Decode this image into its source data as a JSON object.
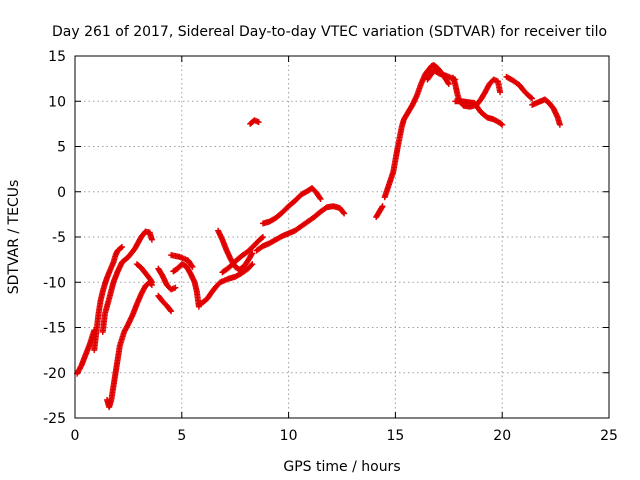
{
  "chart_data": {
    "type": "scatter",
    "title": "Day 261 of 2017, Sidereal Day-to-day VTEC variation (SDTVAR) for receiver tilo",
    "xlabel": "GPS time / hours",
    "ylabel": "SDTVAR / TECUs",
    "xlim": [
      0,
      25
    ],
    "ylim": [
      -25,
      15
    ],
    "xticks": [
      0,
      5,
      10,
      15,
      20,
      25
    ],
    "yticks": [
      -25,
      -20,
      -15,
      -10,
      -5,
      0,
      5,
      10,
      15
    ],
    "grid": true,
    "marker": "+",
    "color": "#e00000",
    "segments": [
      [
        [
          0.1,
          -20.1
        ],
        [
          0.3,
          -19.2
        ],
        [
          0.5,
          -18.0
        ],
        [
          0.7,
          -16.8
        ],
        [
          0.9,
          -15.3
        ]
      ],
      [
        [
          0.9,
          -17.5
        ],
        [
          1.0,
          -15.5
        ],
        [
          1.1,
          -13.5
        ],
        [
          1.2,
          -12.0
        ],
        [
          1.3,
          -11.0
        ],
        [
          1.4,
          -10.2
        ],
        [
          1.5,
          -9.5
        ],
        [
          1.6,
          -8.9
        ],
        [
          1.8,
          -7.8
        ],
        [
          1.9,
          -7.0
        ],
        [
          2.0,
          -6.5
        ],
        [
          2.2,
          -6.1
        ]
      ],
      [
        [
          1.3,
          -15.5
        ],
        [
          1.4,
          -13.5
        ],
        [
          1.6,
          -11.8
        ],
        [
          1.8,
          -10.0
        ],
        [
          2.0,
          -8.8
        ],
        [
          2.2,
          -7.8
        ],
        [
          2.5,
          -7.2
        ],
        [
          2.8,
          -6.3
        ],
        [
          3.1,
          -5.0
        ],
        [
          3.3,
          -4.4
        ],
        [
          3.5,
          -4.5
        ],
        [
          3.6,
          -5.3
        ]
      ],
      [
        [
          1.5,
          -23.0
        ],
        [
          1.6,
          -23.8
        ],
        [
          1.7,
          -23.0
        ],
        [
          1.8,
          -21.5
        ],
        [
          1.9,
          -20.0
        ],
        [
          2.0,
          -18.5
        ],
        [
          2.1,
          -17.0
        ],
        [
          2.3,
          -15.5
        ],
        [
          2.5,
          -14.6
        ],
        [
          2.7,
          -13.6
        ],
        [
          2.9,
          -12.4
        ],
        [
          3.1,
          -11.3
        ],
        [
          3.3,
          -10.4
        ],
        [
          3.5,
          -10.0
        ],
        [
          3.6,
          -10.3
        ]
      ],
      [
        [
          2.9,
          -8.0
        ],
        [
          3.1,
          -8.4
        ],
        [
          3.3,
          -9.0
        ],
        [
          3.5,
          -9.6
        ],
        [
          3.6,
          -10.0
        ]
      ],
      [
        [
          3.9,
          -8.5
        ],
        [
          4.1,
          -9.3
        ],
        [
          4.3,
          -10.3
        ],
        [
          4.5,
          -10.8
        ],
        [
          4.7,
          -10.6
        ]
      ],
      [
        [
          3.9,
          -11.5
        ],
        [
          4.1,
          -12.1
        ],
        [
          4.3,
          -12.6
        ],
        [
          4.5,
          -13.2
        ]
      ],
      [
        [
          4.6,
          -8.8
        ],
        [
          4.8,
          -8.5
        ],
        [
          5.0,
          -8.0
        ],
        [
          5.2,
          -8.2
        ],
        [
          5.4,
          -9.0
        ],
        [
          5.6,
          -10.0
        ],
        [
          5.7,
          -11.0
        ],
        [
          5.8,
          -12.7
        ]
      ],
      [
        [
          4.5,
          -7.0
        ],
        [
          4.9,
          -7.2
        ],
        [
          5.3,
          -7.6
        ],
        [
          5.5,
          -8.3
        ]
      ],
      [
        [
          5.8,
          -12.5
        ],
        [
          6.0,
          -12.2
        ],
        [
          6.2,
          -11.8
        ],
        [
          6.4,
          -11.1
        ],
        [
          6.6,
          -10.5
        ],
        [
          6.8,
          -10.0
        ],
        [
          7.0,
          -9.8
        ],
        [
          7.2,
          -9.6
        ],
        [
          7.5,
          -9.4
        ],
        [
          7.8,
          -9.0
        ],
        [
          8.1,
          -8.5
        ],
        [
          8.3,
          -8.0
        ]
      ],
      [
        [
          6.7,
          -4.3
        ],
        [
          6.9,
          -5.3
        ],
        [
          7.1,
          -6.5
        ],
        [
          7.3,
          -7.5
        ],
        [
          7.5,
          -8.3
        ],
        [
          7.7,
          -8.6
        ],
        [
          7.9,
          -8.3
        ],
        [
          8.1,
          -7.6
        ],
        [
          8.3,
          -6.8
        ]
      ],
      [
        [
          6.9,
          -8.9
        ],
        [
          7.2,
          -8.4
        ],
        [
          7.5,
          -7.7
        ],
        [
          7.8,
          -7.1
        ],
        [
          8.1,
          -6.6
        ],
        [
          8.4,
          -5.9
        ],
        [
          8.6,
          -5.4
        ],
        [
          8.8,
          -5.0
        ]
      ],
      [
        [
          8.2,
          7.5
        ],
        [
          8.4,
          7.9
        ],
        [
          8.6,
          7.7
        ]
      ],
      [
        [
          8.5,
          -6.5
        ],
        [
          8.8,
          -6.0
        ],
        [
          9.1,
          -5.7
        ],
        [
          9.4,
          -5.3
        ],
        [
          9.7,
          -4.9
        ],
        [
          10.0,
          -4.6
        ],
        [
          10.3,
          -4.3
        ],
        [
          10.6,
          -3.8
        ],
        [
          10.9,
          -3.3
        ],
        [
          11.2,
          -2.8
        ],
        [
          11.5,
          -2.2
        ],
        [
          11.8,
          -1.7
        ],
        [
          12.1,
          -1.6
        ],
        [
          12.4,
          -1.8
        ],
        [
          12.6,
          -2.4
        ]
      ],
      [
        [
          8.8,
          -3.5
        ],
        [
          9.1,
          -3.3
        ],
        [
          9.4,
          -2.9
        ],
        [
          9.7,
          -2.3
        ],
        [
          10.0,
          -1.6
        ],
        [
          10.3,
          -1.0
        ],
        [
          10.6,
          -0.3
        ],
        [
          10.9,
          0.1
        ],
        [
          11.1,
          0.4
        ],
        [
          11.3,
          -0.1
        ],
        [
          11.5,
          -0.8
        ]
      ],
      [
        [
          14.1,
          -2.8
        ],
        [
          14.2,
          -2.4
        ],
        [
          14.3,
          -2.0
        ],
        [
          14.4,
          -1.6
        ]
      ],
      [
        [
          14.5,
          -0.6
        ],
        [
          14.7,
          0.8
        ],
        [
          14.9,
          2.2
        ],
        [
          15.0,
          3.5
        ],
        [
          15.1,
          4.8
        ],
        [
          15.2,
          6.0
        ],
        [
          15.3,
          7.2
        ],
        [
          15.4,
          8.0
        ],
        [
          15.6,
          8.8
        ],
        [
          15.8,
          9.6
        ],
        [
          16.0,
          10.6
        ],
        [
          16.2,
          11.9
        ],
        [
          16.4,
          13.0
        ],
        [
          16.6,
          13.6
        ],
        [
          16.7,
          13.9
        ],
        [
          16.8,
          14.0
        ],
        [
          17.0,
          13.6
        ],
        [
          17.2,
          13.0
        ],
        [
          17.4,
          12.3
        ],
        [
          17.5,
          11.9
        ]
      ],
      [
        [
          16.5,
          12.4
        ],
        [
          16.8,
          13.4
        ],
        [
          17.1,
          13.0
        ],
        [
          17.4,
          12.8
        ],
        [
          17.6,
          12.6
        ],
        [
          17.8,
          12.4
        ]
      ],
      [
        [
          17.7,
          12.6
        ],
        [
          17.8,
          11.9
        ],
        [
          17.9,
          10.8
        ],
        [
          18.0,
          10.0
        ],
        [
          18.2,
          9.5
        ],
        [
          18.5,
          9.4
        ],
        [
          18.8,
          9.6
        ],
        [
          19.0,
          10.2
        ],
        [
          19.2,
          11.0
        ],
        [
          19.4,
          11.9
        ],
        [
          19.6,
          12.4
        ],
        [
          19.8,
          12.2
        ],
        [
          19.9,
          11.0
        ]
      ],
      [
        [
          17.8,
          10.0
        ],
        [
          18.1,
          10.0
        ],
        [
          18.4,
          9.9
        ],
        [
          18.7,
          9.8
        ],
        [
          19.0,
          8.8
        ],
        [
          19.3,
          8.2
        ],
        [
          19.6,
          8.0
        ],
        [
          19.9,
          7.6
        ],
        [
          20.0,
          7.4
        ]
      ],
      [
        [
          20.2,
          12.7
        ],
        [
          20.5,
          12.3
        ],
        [
          20.8,
          11.8
        ],
        [
          21.0,
          11.2
        ],
        [
          21.2,
          10.7
        ],
        [
          21.4,
          10.3
        ]
      ],
      [
        [
          21.4,
          9.6
        ],
        [
          21.7,
          9.9
        ],
        [
          22.0,
          10.2
        ],
        [
          22.2,
          9.8
        ],
        [
          22.4,
          9.2
        ],
        [
          22.6,
          8.2
        ],
        [
          22.7,
          7.4
        ]
      ]
    ]
  }
}
